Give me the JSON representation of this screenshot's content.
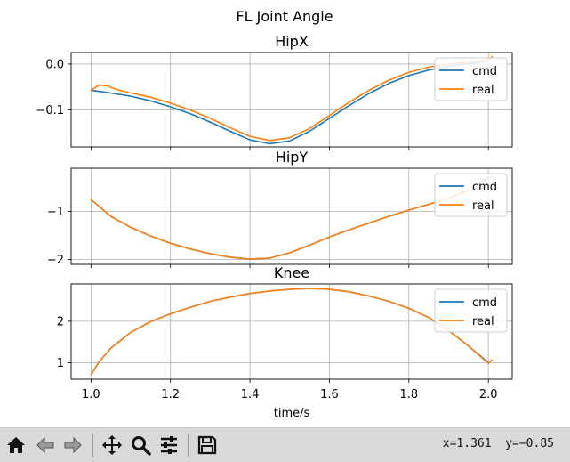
{
  "figure": {
    "suptitle": "FL Joint Angle",
    "xlabel": "time/s"
  },
  "toolbar": {
    "home_icon": "home-icon",
    "back_icon": "back-arrow-icon",
    "forward_icon": "forward-arrow-icon",
    "pan_icon": "pan-move-icon",
    "zoom_icon": "zoom-magnifier-icon",
    "configure_icon": "configure-subplots-icon",
    "save_icon": "save-floppy-icon",
    "coords": "x=1.361  y=−0.85"
  },
  "colors": {
    "cmd": "#1f77b4",
    "real": "#ff7f0e",
    "grid": "#b0b0b0"
  },
  "chart_data": [
    {
      "type": "line",
      "title": "HipX",
      "xlim": [
        0.95,
        2.06
      ],
      "ylim": [
        -0.18,
        0.025
      ],
      "yticks": [
        0.0,
        -0.1
      ],
      "ytick_labels": [
        "0.0",
        "−0.1"
      ],
      "xticks": [
        1.0,
        1.2,
        1.4,
        1.6,
        1.8,
        2.0
      ],
      "grid": true,
      "legend": "top-right",
      "series": [
        {
          "name": "cmd",
          "x": [
            1.0,
            1.05,
            1.1,
            1.15,
            1.2,
            1.25,
            1.3,
            1.35,
            1.4,
            1.45,
            1.5,
            1.55,
            1.6,
            1.65,
            1.7,
            1.75,
            1.8,
            1.85,
            1.9,
            1.95,
            2.0
          ],
          "y": [
            -0.057,
            -0.063,
            -0.07,
            -0.08,
            -0.093,
            -0.108,
            -0.126,
            -0.146,
            -0.165,
            -0.173,
            -0.167,
            -0.146,
            -0.118,
            -0.09,
            -0.064,
            -0.042,
            -0.025,
            -0.013,
            -0.005,
            0.001,
            0.006
          ]
        },
        {
          "name": "real",
          "x": [
            1.0,
            1.02,
            1.04,
            1.06,
            1.08,
            1.1,
            1.15,
            1.2,
            1.25,
            1.3,
            1.35,
            1.4,
            1.45,
            1.5,
            1.55,
            1.6,
            1.65,
            1.7,
            1.75,
            1.8,
            1.85,
            1.9,
            1.95,
            2.0,
            2.01
          ],
          "y": [
            -0.057,
            -0.046,
            -0.047,
            -0.054,
            -0.059,
            -0.063,
            -0.072,
            -0.085,
            -0.1,
            -0.118,
            -0.138,
            -0.157,
            -0.166,
            -0.16,
            -0.14,
            -0.112,
            -0.083,
            -0.057,
            -0.035,
            -0.018,
            -0.007,
            0.0,
            0.004,
            0.009,
            0.017
          ]
        }
      ]
    },
    {
      "type": "line",
      "title": "HipY",
      "xlim": [
        0.95,
        2.06
      ],
      "ylim": [
        -2.1,
        -0.1
      ],
      "yticks": [
        -1,
        -2
      ],
      "ytick_labels": [
        "−1",
        "−2"
      ],
      "xticks": [
        1.0,
        1.2,
        1.4,
        1.6,
        1.8,
        2.0
      ],
      "grid": true,
      "legend": "top-right",
      "series": [
        {
          "name": "cmd",
          "x": [
            1.0,
            1.05,
            1.1,
            1.15,
            1.2,
            1.25,
            1.3,
            1.35,
            1.4,
            1.45,
            1.5,
            1.55,
            1.6,
            1.65,
            1.7,
            1.75,
            1.8,
            1.85,
            1.9,
            1.95,
            2.0
          ],
          "y": [
            -0.75,
            -1.1,
            -1.33,
            -1.51,
            -1.66,
            -1.78,
            -1.88,
            -1.95,
            -1.99,
            -1.97,
            -1.86,
            -1.7,
            -1.53,
            -1.38,
            -1.24,
            -1.1,
            -0.97,
            -0.85,
            -0.73,
            -0.56,
            -0.28
          ]
        },
        {
          "name": "real",
          "x": [
            1.0,
            1.05,
            1.1,
            1.15,
            1.2,
            1.25,
            1.3,
            1.35,
            1.4,
            1.45,
            1.5,
            1.55,
            1.6,
            1.65,
            1.7,
            1.75,
            1.8,
            1.85,
            1.9,
            1.95,
            2.0,
            2.01
          ],
          "y": [
            -0.75,
            -1.1,
            -1.33,
            -1.51,
            -1.66,
            -1.78,
            -1.88,
            -1.95,
            -1.99,
            -1.97,
            -1.86,
            -1.7,
            -1.53,
            -1.38,
            -1.24,
            -1.1,
            -0.97,
            -0.85,
            -0.73,
            -0.56,
            -0.3,
            -0.25
          ]
        }
      ]
    },
    {
      "type": "line",
      "title": "Knee",
      "xlim": [
        0.95,
        2.06
      ],
      "ylim": [
        0.6,
        2.9
      ],
      "yticks": [
        1,
        2
      ],
      "ytick_labels": [
        "1",
        "2"
      ],
      "xticks": [
        1.0,
        1.2,
        1.4,
        1.6,
        1.8,
        2.0
      ],
      "xtick_labels": [
        "1.0",
        "1.2",
        "1.4",
        "1.6",
        "1.8",
        "2.0"
      ],
      "grid": true,
      "legend": "top-right",
      "series": [
        {
          "name": "cmd",
          "x": [
            1.0,
            1.02,
            1.05,
            1.1,
            1.15,
            1.2,
            1.25,
            1.3,
            1.35,
            1.4,
            1.45,
            1.5,
            1.55,
            1.6,
            1.65,
            1.7,
            1.75,
            1.8,
            1.85,
            1.9,
            1.95,
            2.0
          ],
          "y": [
            0.7,
            1.02,
            1.35,
            1.73,
            1.99,
            2.18,
            2.34,
            2.48,
            2.58,
            2.67,
            2.73,
            2.77,
            2.79,
            2.77,
            2.71,
            2.61,
            2.48,
            2.31,
            2.09,
            1.78,
            1.4,
            1.0
          ]
        },
        {
          "name": "real",
          "x": [
            1.0,
            1.02,
            1.05,
            1.1,
            1.15,
            1.2,
            1.25,
            1.3,
            1.35,
            1.4,
            1.45,
            1.5,
            1.55,
            1.6,
            1.65,
            1.7,
            1.75,
            1.8,
            1.85,
            1.9,
            1.95,
            2.0,
            2.01
          ],
          "y": [
            0.7,
            1.02,
            1.35,
            1.73,
            1.99,
            2.18,
            2.34,
            2.48,
            2.58,
            2.67,
            2.73,
            2.77,
            2.79,
            2.77,
            2.71,
            2.61,
            2.48,
            2.31,
            2.09,
            1.78,
            1.4,
            0.98,
            1.08
          ]
        }
      ]
    }
  ]
}
